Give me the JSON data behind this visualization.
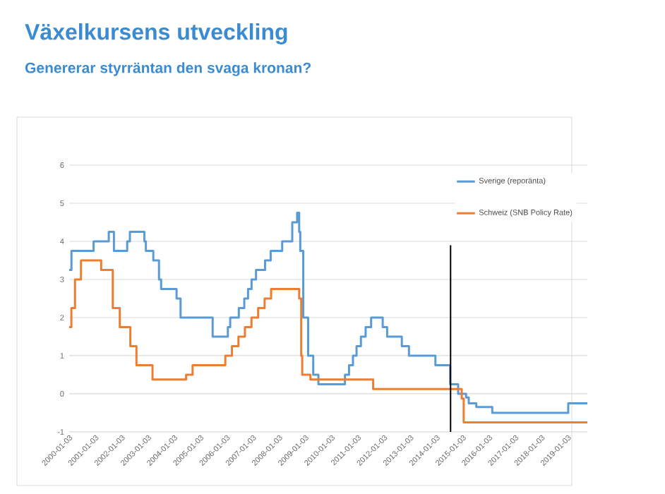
{
  "chart_data": {
    "type": "step",
    "title": "Växelkursens utveckling",
    "subtitle": "Genererar styrräntan den svaga kronan?",
    "xlim": [
      "2000-01-03",
      "2019-10-01"
    ],
    "xticks": [
      "2000-01-03",
      "2001-01-03",
      "2002-01-03",
      "2003-01-03",
      "2004-01-03",
      "2005-01-03",
      "2006-01-03",
      "2007-01-03",
      "2008-01-03",
      "2009-01-03",
      "2010-01-03",
      "2011-01-03",
      "2012-01-03",
      "2013-01-03",
      "2014-01-03",
      "2015-01-03",
      "2016-01-03",
      "2017-01-03",
      "2018-01-03",
      "2019-01-03"
    ],
    "ylim": [
      -1,
      6
    ],
    "yticks": [
      -1,
      0,
      1,
      2,
      3,
      4,
      5,
      6
    ],
    "grid": "y",
    "legend": "top right",
    "line_style": "solid",
    "marker": "none",
    "series": [
      {
        "name": "Sverige (reporänta)",
        "color": "#5b9bd5",
        "x": [
          "2000-01-03",
          "2000-02-04",
          "2000-12-08",
          "2001-07-06",
          "2001-09-17",
          "2002-03-19",
          "2002-04-26",
          "2002-11-15",
          "2002-12-05",
          "2003-03-17",
          "2003-06-05",
          "2003-07-04",
          "2004-02-06",
          "2004-04-01",
          "2005-06-21",
          "2006-01-20",
          "2006-02-22",
          "2006-06-20",
          "2006-09-05",
          "2006-10-27",
          "2006-12-15",
          "2007-02-16",
          "2007-06-20",
          "2007-09-07",
          "2008-02-15",
          "2008-07-03",
          "2008-09-10",
          "2008-10-08",
          "2008-10-23",
          "2008-12-04",
          "2009-02-11",
          "2009-04-21",
          "2009-07-02",
          "2010-07-06",
          "2010-09-02",
          "2010-10-26",
          "2010-12-15",
          "2011-02-15",
          "2011-04-20",
          "2011-07-05",
          "2011-12-14",
          "2012-02-15",
          "2012-09-06",
          "2012-12-14",
          "2013-12-17",
          "2014-07-09",
          "2014-10-29",
          "2015-02-18",
          "2015-03-25",
          "2015-07-08",
          "2016-02-17",
          "2019-01-09",
          "2019-10-01"
        ],
        "values": [
          3.25,
          3.75,
          4.0,
          4.25,
          3.75,
          4.0,
          4.25,
          4.0,
          3.75,
          3.5,
          3.0,
          2.75,
          2.5,
          2.0,
          1.5,
          1.75,
          2.0,
          2.25,
          2.5,
          2.75,
          3.0,
          3.25,
          3.5,
          3.75,
          4.0,
          4.5,
          4.75,
          4.25,
          3.75,
          2.0,
          1.0,
          0.5,
          0.25,
          0.5,
          0.75,
          1.0,
          1.25,
          1.5,
          1.75,
          2.0,
          1.75,
          1.5,
          1.25,
          1.0,
          0.75,
          0.25,
          0.0,
          -0.1,
          -0.25,
          -0.35,
          -0.5,
          -0.25,
          -0.25
        ]
      },
      {
        "name": "Schweiz (SNB Policy Rate)",
        "color": "#ed7d31",
        "x": [
          "2000-01-03",
          "2000-02-03",
          "2000-03-23",
          "2000-06-15",
          "2001-03-22",
          "2001-09-01",
          "2001-12-07",
          "2002-05-02",
          "2002-07-26",
          "2003-03-06",
          "2004-06-17",
          "2004-09-16",
          "2005-12-15",
          "2006-03-16",
          "2006-06-15",
          "2006-09-14",
          "2006-12-14",
          "2007-03-15",
          "2007-06-14",
          "2007-09-13",
          "2008-10-08",
          "2008-11-06",
          "2008-11-20",
          "2009-03-12",
          "2011-08-03",
          "2014-12-18",
          "2015-01-15",
          "2019-10-01"
        ],
        "values": [
          1.75,
          2.25,
          3.0,
          3.5,
          3.25,
          2.25,
          1.75,
          1.25,
          0.75,
          0.375,
          0.5,
          0.75,
          1.0,
          1.25,
          1.5,
          1.75,
          2.0,
          2.25,
          2.5,
          2.75,
          2.5,
          1.0,
          0.5,
          0.375,
          0.125,
          -0.125,
          -0.75,
          -0.75
        ]
      },
      {
        "type": "line",
        "color": "#000000",
        "x": [
          "2014-07-15",
          "2014-07-15"
        ],
        "values": [
          3.9,
          -1
        ]
      }
    ]
  }
}
